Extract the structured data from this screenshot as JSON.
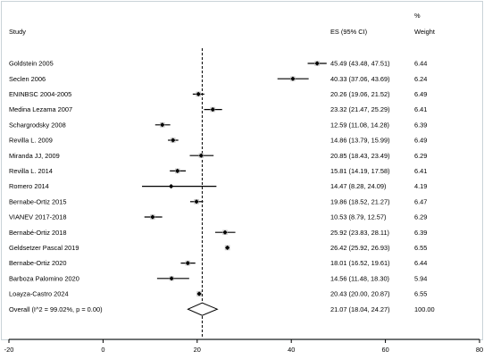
{
  "chart_data": {
    "type": "forest",
    "headers": {
      "study": "Study",
      "es": "ES (95% CI)",
      "weight_top": "%",
      "weight": "Weight"
    },
    "studies": [
      {
        "name": "Goldstein 2005",
        "es": 45.49,
        "lo": 43.48,
        "hi": 47.51,
        "es_text": "45.49 (43.48, 47.51)",
        "weight": 6.44,
        "weight_text": "6.44"
      },
      {
        "name": "Seclen 2006",
        "es": 40.33,
        "lo": 37.06,
        "hi": 43.69,
        "es_text": "40.33 (37.06, 43.69)",
        "weight": 6.24,
        "weight_text": "6.24"
      },
      {
        "name": "ENINBSC 2004-2005",
        "es": 20.26,
        "lo": 19.06,
        "hi": 21.52,
        "es_text": "20.26 (19.06, 21.52)",
        "weight": 6.49,
        "weight_text": "6.49"
      },
      {
        "name": "Medina Lezama 2007",
        "es": 23.32,
        "lo": 21.47,
        "hi": 25.29,
        "es_text": "23.32 (21.47, 25.29)",
        "weight": 6.41,
        "weight_text": "6.41"
      },
      {
        "name": "Schargrodsky 2008",
        "es": 12.59,
        "lo": 11.08,
        "hi": 14.28,
        "es_text": "12.59 (11.08, 14.28)",
        "weight": 6.39,
        "weight_text": "6.39"
      },
      {
        "name": "Revilla L. 2009",
        "es": 14.86,
        "lo": 13.79,
        "hi": 15.99,
        "es_text": "14.86 (13.79, 15.99)",
        "weight": 6.49,
        "weight_text": "6.49"
      },
      {
        "name": "Miranda JJ, 2009",
        "es": 20.85,
        "lo": 18.43,
        "hi": 23.49,
        "es_text": "20.85 (18.43, 23.49)",
        "weight": 6.29,
        "weight_text": "6.29"
      },
      {
        "name": "Revilla L. 2014",
        "es": 15.81,
        "lo": 14.19,
        "hi": 17.58,
        "es_text": "15.81 (14.19, 17.58)",
        "weight": 6.41,
        "weight_text": "6.41"
      },
      {
        "name": "Romero 2014",
        "es": 14.47,
        "lo": 8.28,
        "hi": 24.09,
        "es_text": "14.47 (8.28, 24.09)",
        "weight": 4.19,
        "weight_text": "4.19"
      },
      {
        "name": "Bernabe-Ortiz 2015",
        "es": 19.86,
        "lo": 18.52,
        "hi": 21.27,
        "es_text": "19.86 (18.52, 21.27)",
        "weight": 6.47,
        "weight_text": "6.47"
      },
      {
        "name": "VIANEV 2017-2018",
        "es": 10.53,
        "lo": 8.79,
        "hi": 12.57,
        "es_text": "10.53 (8.79, 12.57)",
        "weight": 6.29,
        "weight_text": "6.29"
      },
      {
        "name": "Bernabé-Ortiz 2018",
        "es": 25.92,
        "lo": 23.83,
        "hi": 28.11,
        "es_text": "25.92 (23.83, 28.11)",
        "weight": 6.39,
        "weight_text": "6.39"
      },
      {
        "name": "Geldsetzer Pascal 2019",
        "es": 26.42,
        "lo": 25.92,
        "hi": 26.93,
        "es_text": "26.42 (25.92, 26.93)",
        "weight": 6.55,
        "weight_text": "6.55"
      },
      {
        "name": "Bernabe-Ortiz 2020",
        "es": 18.01,
        "lo": 16.52,
        "hi": 19.61,
        "es_text": "18.01 (16.52, 19.61)",
        "weight": 6.44,
        "weight_text": "6.44"
      },
      {
        "name": "Barboza Palomino 2020",
        "es": 14.56,
        "lo": 11.48,
        "hi": 18.3,
        "es_text": "14.56 (11.48, 18.30)",
        "weight": 5.94,
        "weight_text": "5.94"
      },
      {
        "name": "Loayza-Castro 2024",
        "es": 20.43,
        "lo": 20.0,
        "hi": 20.87,
        "es_text": "20.43 (20.00, 20.87)",
        "weight": 6.55,
        "weight_text": "6.55"
      }
    ],
    "overall": {
      "name": "Overall  (I^2 = 99.02%, p = 0.00)",
      "es": 21.07,
      "lo": 18.04,
      "hi": 24.27,
      "es_text": "21.07 (18.04, 24.27)",
      "weight_text": "100.00"
    },
    "xaxis": {
      "min": -20,
      "max": 80,
      "ticks": [
        -20,
        0,
        20,
        40,
        60,
        80
      ],
      "tick_labels": [
        "-20",
        "0",
        "20",
        "40",
        "60",
        "80"
      ]
    },
    "reference_line": 21.07,
    "colors": {
      "ci_line": "#000000",
      "box_fill": "#c8c8c8",
      "point": "#000000",
      "reference_line": "#000000",
      "frame": "#c9d3d8"
    }
  }
}
